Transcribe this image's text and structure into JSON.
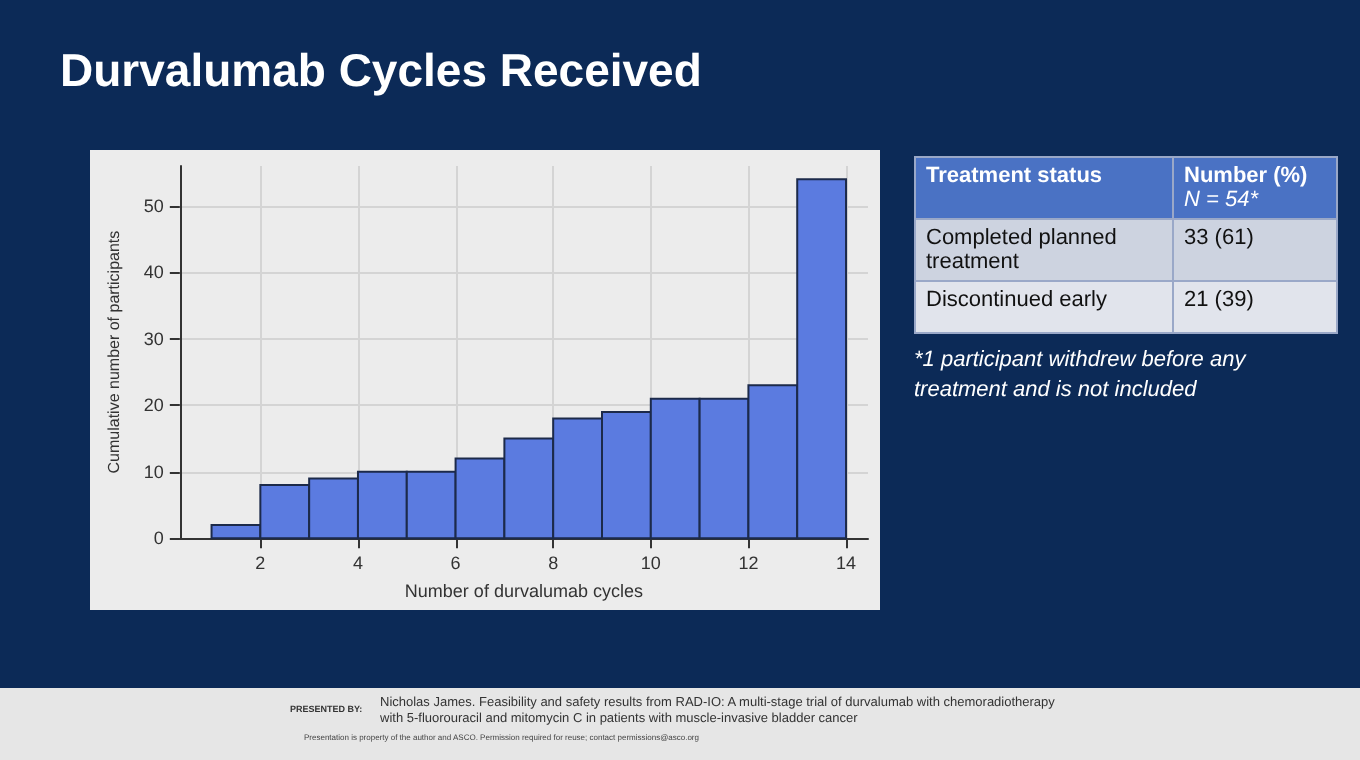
{
  "chart_data": [
    {
      "type": "histogram",
      "title": "Durvalumab Cycles Received",
      "xlabel": "Number of durvalumab cycles",
      "ylabel": "Cumulative number of participants",
      "bins": [
        1,
        2,
        3,
        4,
        5,
        6,
        7,
        8,
        9,
        10,
        11,
        12,
        13,
        14
      ],
      "values": [
        2,
        8,
        9,
        10,
        10,
        12,
        15,
        18,
        19,
        21,
        21,
        23,
        54
      ],
      "color": "#5b7be0",
      "xlim": [
        0.35,
        14.45
      ],
      "xticks": [
        2,
        4,
        6,
        8,
        10,
        12,
        14
      ],
      "ylim": [
        0,
        56
      ],
      "yticks": [
        0,
        10,
        20,
        30,
        40,
        50
      ],
      "grid": true,
      "annotations": [
        "PRESENTED BY:",
        "Nicholas James. Feasibility and safety results from RAD-IO: A multi-stage trial of durvalumab with chemoradiotherapy with 5-fluorouracil and mitomycin C in patients with muscle-invasive bladder cancer",
        "Presentation is property of the author and ASCO. Permission required for reuse; contact permissions@asco.org"
      ]
    },
    {
      "type": "other",
      "annotations": [
        "Treatment status",
        "Number (%)",
        "N = 54*",
        "Completed planned treatment",
        "33 (61)",
        "Discontinued early",
        "21 (39)",
        "*1 participant withdrew before any treatment and is not included"
      ]
    }
  ]
}
